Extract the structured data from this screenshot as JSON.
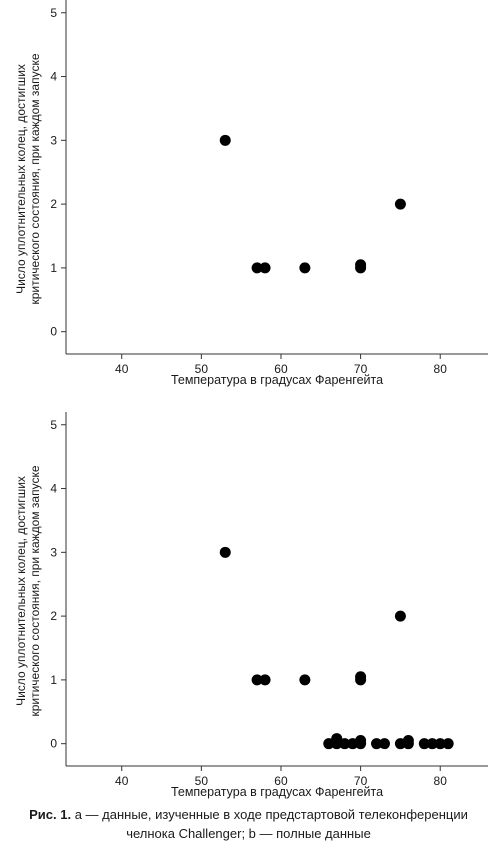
{
  "chart_data": [
    {
      "type": "scatter",
      "xlabel": "Температура в градусах Фаренгейта",
      "ylabel_lines": [
        "Число уплотнительных колец, достигших",
        "критического состояния, при каждом запуске"
      ],
      "x_ticks": [
        40,
        50,
        60,
        70,
        80
      ],
      "y_ticks": [
        0,
        1,
        2,
        3,
        4,
        5
      ],
      "xlim": [
        33,
        86
      ],
      "ylim": [
        -0.35,
        5.2
      ],
      "points": [
        {
          "x": 53,
          "y": 3
        },
        {
          "x": 57,
          "y": 1
        },
        {
          "x": 58,
          "y": 1
        },
        {
          "x": 63,
          "y": 1
        },
        {
          "x": 70,
          "y": 1.05
        },
        {
          "x": 70,
          "y": 1
        },
        {
          "x": 75,
          "y": 2
        }
      ]
    },
    {
      "type": "scatter",
      "xlabel": "Температура в градусах Фаренгейта",
      "ylabel_lines": [
        "Число уплотнительных колец, достигших",
        "критического состояния, при каждом запуске"
      ],
      "x_ticks": [
        40,
        50,
        60,
        70,
        80
      ],
      "y_ticks": [
        0,
        1,
        2,
        3,
        4,
        5
      ],
      "xlim": [
        33,
        86
      ],
      "ylim": [
        -0.35,
        5.2
      ],
      "points": [
        {
          "x": 53,
          "y": 3
        },
        {
          "x": 57,
          "y": 1
        },
        {
          "x": 58,
          "y": 1
        },
        {
          "x": 63,
          "y": 1
        },
        {
          "x": 70,
          "y": 1.05
        },
        {
          "x": 70,
          "y": 1
        },
        {
          "x": 75,
          "y": 2
        },
        {
          "x": 66,
          "y": 0
        },
        {
          "x": 67,
          "y": 0.08
        },
        {
          "x": 67,
          "y": 0
        },
        {
          "x": 68,
          "y": 0
        },
        {
          "x": 69,
          "y": 0
        },
        {
          "x": 70,
          "y": 0.05
        },
        {
          "x": 70,
          "y": 0
        },
        {
          "x": 72,
          "y": 0
        },
        {
          "x": 73,
          "y": 0
        },
        {
          "x": 75,
          "y": 0
        },
        {
          "x": 76,
          "y": 0.05
        },
        {
          "x": 76,
          "y": 0
        },
        {
          "x": 78,
          "y": 0
        },
        {
          "x": 79,
          "y": 0
        },
        {
          "x": 80,
          "y": 0
        },
        {
          "x": 81,
          "y": 0
        }
      ]
    }
  ],
  "caption": {
    "label": "Рис. 1.",
    "line1_rest": "a — данные, изученные в ходе предстартовой телеконференции",
    "line2": "челнока Challenger; b — полные данные"
  },
  "colors": {
    "marker": "#000000",
    "axis": "#333333",
    "text": "#1a1a1a"
  }
}
